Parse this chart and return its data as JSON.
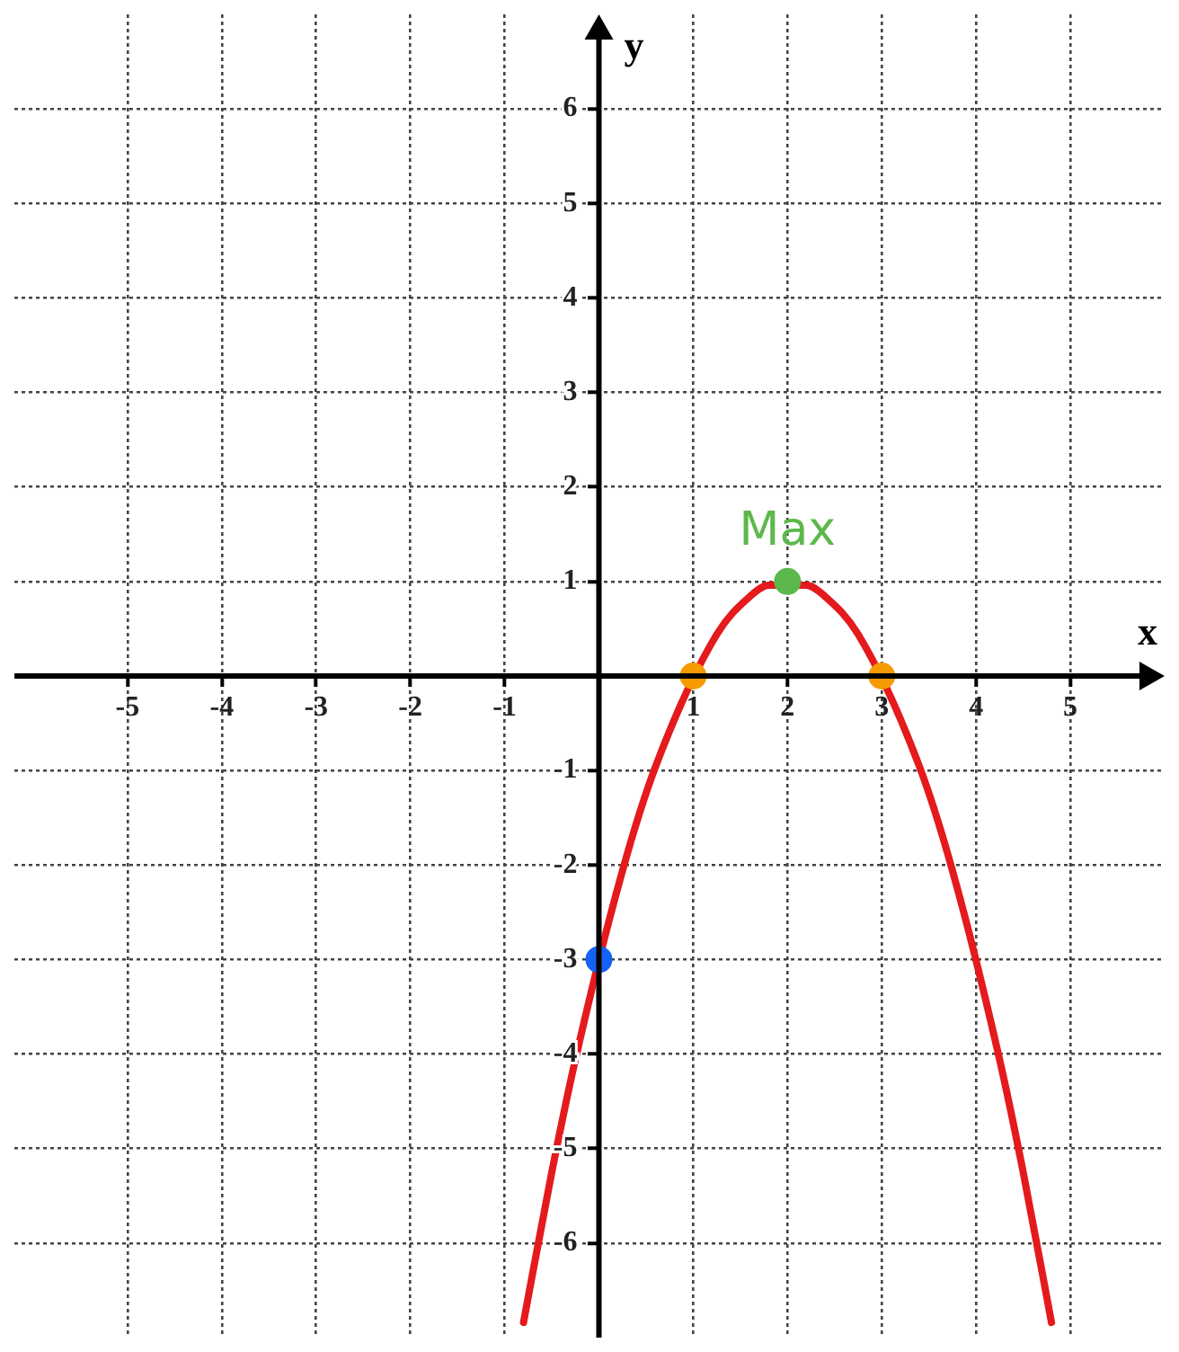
{
  "chart_data": {
    "type": "line",
    "xlabel": "x",
    "ylabel": "y",
    "xlim": [
      -6.2,
      6
    ],
    "ylim": [
      -7,
      7
    ],
    "xticks": [
      -5,
      -4,
      -3,
      -2,
      -1,
      1,
      2,
      3,
      4,
      5
    ],
    "yticks": [
      -6,
      -5,
      -4,
      -3,
      -2,
      -1,
      1,
      2,
      3,
      4,
      5,
      6
    ],
    "grid": true,
    "legend": false,
    "line_style": "solid",
    "marker": "none",
    "series": [
      {
        "type": "line",
        "color": "#e41a1c",
        "x": [
          -0.8,
          -0.5,
          -0.25,
          0.25,
          0.6,
          1.25,
          1.6,
          1.8,
          2.2,
          2.4,
          2.75,
          3.4,
          3.75,
          4.25,
          4.5,
          4.8
        ],
        "values": [
          -6.84,
          -5.25,
          -4.06,
          -2.06,
          -0.96,
          0.44,
          0.84,
          0.96,
          0.96,
          0.84,
          0.44,
          -0.96,
          -2.06,
          -4.06,
          -5.25,
          -6.84
        ]
      },
      {
        "type": "scatter",
        "marker": "circle",
        "x": [
          0,
          1,
          2,
          3
        ],
        "values": [
          -3,
          0,
          1,
          0
        ],
        "colors": [
          "#1463f5",
          "#f59b00",
          "#5cb84a",
          "#f59b00"
        ]
      }
    ],
    "annotations": [
      {
        "text": "Max",
        "x": 2,
        "y": 1
      }
    ]
  }
}
